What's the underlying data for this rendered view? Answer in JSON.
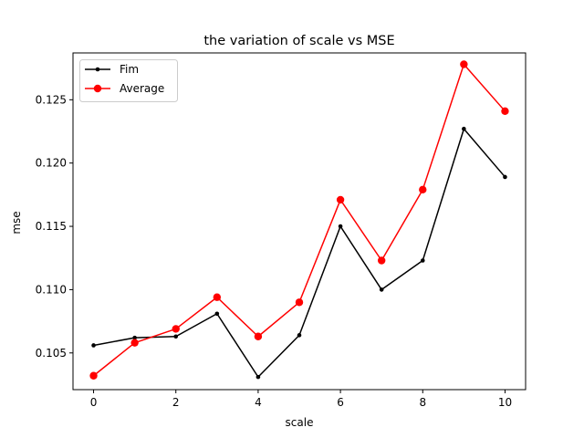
{
  "chart_data": {
    "type": "line",
    "title": "the variation of scale vs MSE",
    "xlabel": "scale",
    "ylabel": "mse",
    "x": [
      0,
      1,
      2,
      3,
      4,
      5,
      6,
      7,
      8,
      9,
      10
    ],
    "xlim": [
      -0.5,
      10.5
    ],
    "ylim": [
      0.1021,
      0.1287
    ],
    "xticks": [
      0,
      2,
      4,
      6,
      8,
      10
    ],
    "xtick_labels": [
      "0",
      "2",
      "4",
      "6",
      "8",
      "10"
    ],
    "yticks": [
      0.105,
      0.11,
      0.115,
      0.12,
      0.125
    ],
    "ytick_labels": [
      "0.105",
      "0.110",
      "0.115",
      "0.120",
      "0.125"
    ],
    "grid": false,
    "legend_position": "top-left",
    "series": [
      {
        "name": "Fim",
        "color": "#000000",
        "marker": "small-dot",
        "values": [
          0.1056,
          0.1062,
          0.1063,
          0.1081,
          0.1031,
          0.1064,
          0.115,
          0.11,
          0.1123,
          0.1227,
          0.1189
        ]
      },
      {
        "name": "Average",
        "color": "#ff0000",
        "marker": "large-dot",
        "values": [
          0.1032,
          0.1058,
          0.1069,
          0.1094,
          0.1063,
          0.109,
          0.1171,
          0.1123,
          0.1179,
          0.1278,
          0.1241
        ]
      }
    ]
  }
}
